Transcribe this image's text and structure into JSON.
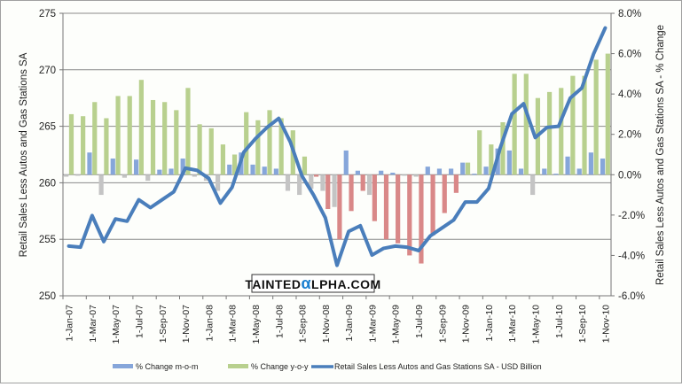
{
  "chart_data": {
    "type": "bar+line",
    "title": "",
    "ylabel_left": "Retail Sales Less Autos and Gas Stations SA",
    "ylabel_right": "Retail Sales Less Autos and Gas Stations SA - % Change",
    "ylim_left": [
      250,
      275
    ],
    "yticks_left": [
      "250",
      "255",
      "260",
      "265",
      "270",
      "275"
    ],
    "ylim_right": [
      -6,
      8
    ],
    "yticks_right": [
      "-6.0%",
      "-4.0%",
      "-2.0%",
      "0.0%",
      "2.0%",
      "4.0%",
      "6.0%",
      "8.0%"
    ],
    "grid": true,
    "legend_position": "bottom",
    "categories": [
      "Jan-07",
      "Feb-07",
      "Mar-07",
      "Apr-07",
      "May-07",
      "Jun-07",
      "Jul-07",
      "Aug-07",
      "Sep-07",
      "Oct-07",
      "Nov-07",
      "Dec-07",
      "Jan-08",
      "Feb-08",
      "Mar-08",
      "Apr-08",
      "May-08",
      "Jun-08",
      "Jul-08",
      "Aug-08",
      "Sep-08",
      "Oct-08",
      "Nov-08",
      "Dec-08",
      "Jan-09",
      "Feb-09",
      "Mar-09",
      "Apr-09",
      "May-09",
      "Jun-09",
      "Jul-09",
      "Aug-09",
      "Sep-09",
      "Oct-09",
      "Nov-09",
      "Dec-09",
      "Jan-10",
      "Feb-10",
      "Mar-10",
      "Apr-10",
      "May-10",
      "Jun-10",
      "Jul-10",
      "Aug-10",
      "Sep-10",
      "Oct-10",
      "Nov-10"
    ],
    "xtick_labels": [
      "1-Jan-07",
      "1-Mar-07",
      "1-May-07",
      "1-Jul-07",
      "1-Sep-07",
      "1-Nov-07",
      "1-Jan-08",
      "1-Mar-08",
      "1-May-08",
      "1-Jul-08",
      "1-Sep-08",
      "1-Nov-08",
      "1-Jan-09",
      "1-Mar-09",
      "1-May-09",
      "1-Jul-09",
      "1-Sep-09",
      "1-Nov-09",
      "1-Jan-10",
      "1-Mar-10",
      "1-May-10",
      "1-Jul-10",
      "1-Sep-10",
      "1-Nov-10"
    ],
    "series": [
      {
        "name": "% Change m-o-m",
        "axis": "right",
        "kind": "bar",
        "color": "#86a6da",
        "negative_color": "#c4c4c4",
        "values": [
          -0.1,
          -0.05,
          1.1,
          -1.0,
          0.8,
          -0.15,
          0.75,
          -0.3,
          0.25,
          0.3,
          0.8,
          -0.1,
          -0.3,
          -0.8,
          0.5,
          1.1,
          0.5,
          0.4,
          0.3,
          -0.8,
          -1.0,
          -0.7,
          -0.8,
          -1.6,
          1.2,
          0.2,
          -1.0,
          0.2,
          0.1,
          -0.05,
          -0.1,
          0.4,
          0.3,
          0.3,
          0.6,
          0.05,
          0.4,
          1.3,
          1.2,
          0.3,
          -1.0,
          0.3,
          0.05,
          0.9,
          0.3,
          1.1,
          0.8
        ]
      },
      {
        "name": "% Change y-o-y",
        "axis": "right",
        "kind": "bar",
        "color": "#b8d08e",
        "negative_color": "#d98888",
        "values": [
          3.0,
          2.9,
          3.6,
          2.8,
          3.9,
          3.9,
          4.7,
          3.7,
          3.6,
          3.2,
          4.3,
          2.5,
          2.3,
          1.5,
          1.0,
          3.1,
          2.7,
          3.2,
          2.8,
          2.2,
          0.9,
          -0.1,
          -1.7,
          -3.2,
          -1.8,
          -0.8,
          -2.3,
          -3.2,
          -3.4,
          -4.0,
          -4.4,
          -3.0,
          -1.9,
          -0.9,
          0.6,
          2.2,
          1.5,
          2.6,
          5.0,
          5.0,
          3.8,
          4.1,
          4.3,
          4.9,
          4.9,
          5.7,
          6.0
        ]
      },
      {
        "name": "Retail Sales Less Autos and Gas Stations SA - USD Billion",
        "axis": "left",
        "kind": "line",
        "color": "#4a7ebb",
        "values": [
          254.4,
          254.3,
          257.1,
          254.8,
          256.8,
          256.6,
          258.5,
          257.8,
          258.5,
          259.2,
          261.3,
          261.1,
          260.4,
          258.2,
          259.6,
          262.7,
          263.9,
          264.9,
          265.7,
          263.6,
          260.6,
          258.9,
          256.9,
          252.7,
          255.7,
          256.2,
          253.6,
          254.2,
          254.4,
          254.3,
          254.0,
          255.3,
          256.0,
          256.7,
          258.3,
          258.3,
          259.5,
          263.1,
          266.1,
          267.0,
          264.0,
          264.9,
          265.0,
          267.5,
          268.4,
          271.4,
          273.7
        ]
      }
    ]
  },
  "watermark": "TAINTEDαLPHA.COM"
}
